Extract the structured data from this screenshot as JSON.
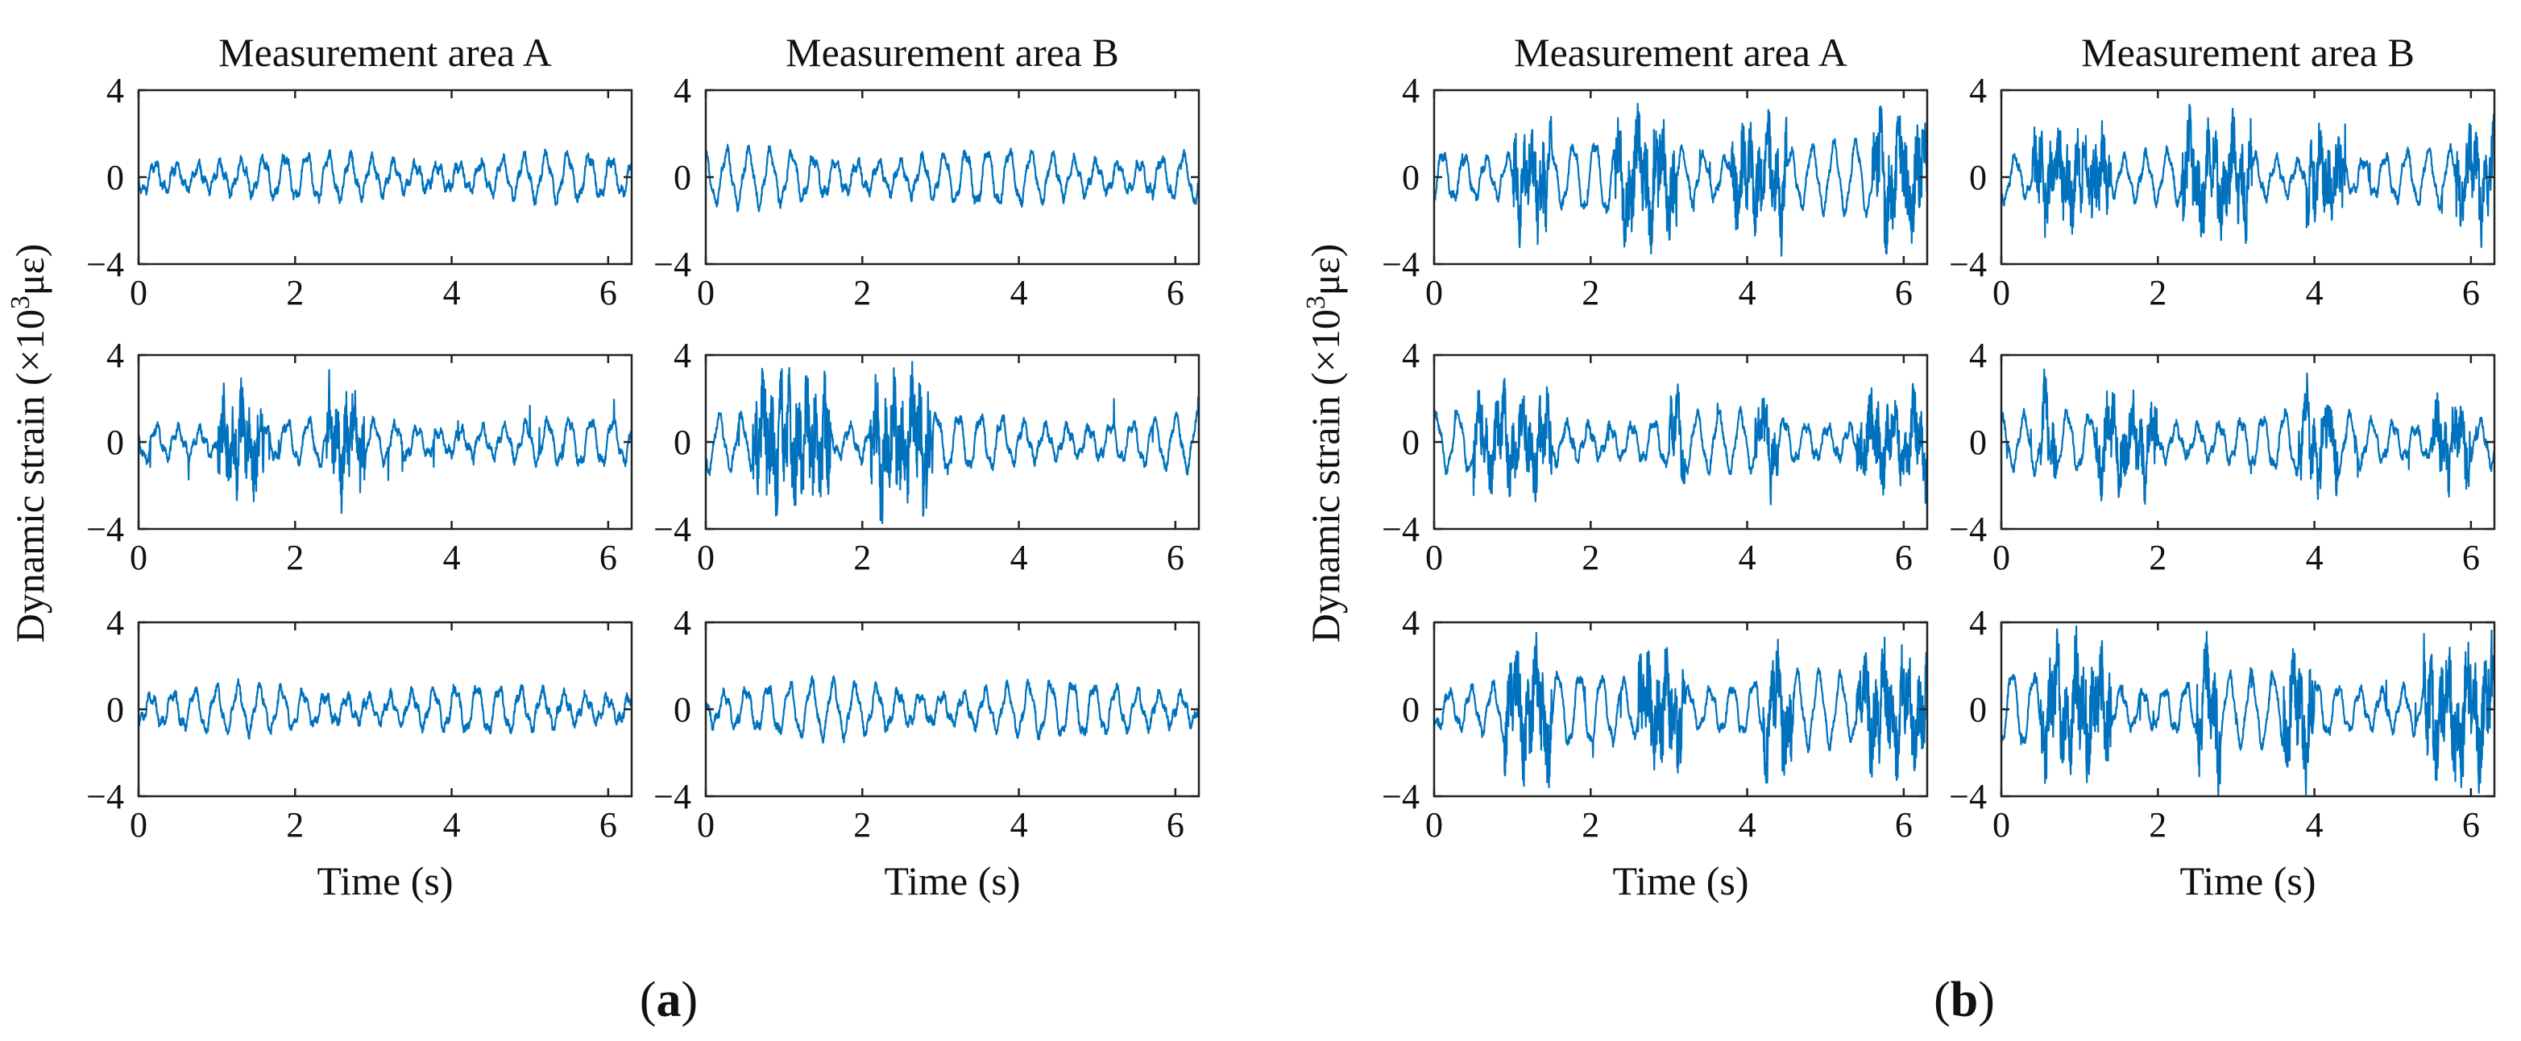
{
  "chart_data": [
    {
      "type": "line",
      "panel_label": "(a)",
      "column_titles": [
        "Measurement area A",
        "Measurement area B"
      ],
      "ylabel_prefix": "Dynamic strain (×10",
      "ylabel_sup": "3",
      "ylabel_suffix": "με)",
      "xlabel": "Time (s)",
      "xlim": [
        0,
        6.3
      ],
      "ylim": [
        -4,
        4
      ],
      "xticks": [
        0,
        2,
        4,
        6
      ],
      "yticks": [
        4,
        0,
        -4
      ],
      "series_color": "#0072BD",
      "rows": [
        [
          {
            "name": "a-A-row1",
            "base_amp": 1.0,
            "burst": 0.25,
            "bursts": [],
            "seed": 11
          },
          {
            "name": "a-B-row1",
            "base_amp": 1.2,
            "burst": 0.25,
            "bursts": [],
            "seed": 12
          }
        ],
        [
          {
            "name": "a-A-row2",
            "base_amp": 1.0,
            "burst": 1.6,
            "bursts": [
              [
                1.0,
                1.6
              ],
              [
                2.4,
                2.9
              ]
            ],
            "seed": 21
          },
          {
            "name": "a-B-row2",
            "base_amp": 1.2,
            "burst": 2.0,
            "bursts": [
              [
                0.6,
                1.6
              ],
              [
                2.1,
                2.9
              ]
            ],
            "seed": 22
          }
        ],
        [
          {
            "name": "a-A-row3",
            "base_amp": 1.0,
            "burst": 0.25,
            "bursts": [],
            "seed": 31
          },
          {
            "name": "a-B-row3",
            "base_amp": 1.2,
            "burst": 0.25,
            "bursts": [],
            "seed": 32
          }
        ]
      ]
    },
    {
      "type": "line",
      "panel_label": "(b)",
      "column_titles": [
        "Measurement area A",
        "Measurement area B"
      ],
      "ylabel_prefix": "Dynamic strain (×10",
      "ylabel_sup": "3",
      "ylabel_suffix": "με)",
      "xlabel": "Time (s)",
      "xlim": [
        0,
        6.3
      ],
      "ylim": [
        -4,
        4
      ],
      "xticks": [
        0,
        2,
        4,
        6
      ],
      "yticks": [
        4,
        0,
        -4
      ],
      "series_color": "#0072BD",
      "rows": [
        [
          {
            "name": "b-A-row1",
            "base_amp": 1.6,
            "burst": 1.6,
            "bursts": [
              [
                1.0,
                1.5
              ],
              [
                2.3,
                3.1
              ],
              [
                3.8,
                4.5
              ],
              [
                5.6,
                6.3
              ]
            ],
            "seed": 41
          },
          {
            "name": "b-B-row1",
            "base_amp": 1.2,
            "burst": 1.4,
            "bursts": [
              [
                0.4,
                1.4
              ],
              [
                2.3,
                3.2
              ],
              [
                3.9,
                4.4
              ],
              [
                5.8,
                6.3
              ]
            ],
            "seed": 42
          }
        ],
        [
          {
            "name": "b-A-row2",
            "base_amp": 1.3,
            "burst": 1.2,
            "bursts": [
              [
                0.5,
                1.5
              ],
              [
                3.0,
                3.2
              ],
              [
                4.1,
                4.4
              ],
              [
                5.4,
                6.3
              ]
            ],
            "seed": 51
          },
          {
            "name": "b-B-row2",
            "base_amp": 1.3,
            "burst": 1.2,
            "bursts": [
              [
                0.5,
                0.7
              ],
              [
                1.2,
                2.0
              ],
              [
                3.8,
                4.3
              ],
              [
                5.5,
                6.0
              ]
            ],
            "seed": 52
          }
        ],
        [
          {
            "name": "b-A-row3",
            "base_amp": 1.6,
            "burst": 1.6,
            "bursts": [
              [
                0.9,
                1.5
              ],
              [
                2.6,
                3.2
              ],
              [
                4.2,
                4.6
              ],
              [
                5.4,
                6.3
              ]
            ],
            "seed": 61
          },
          {
            "name": "b-B-row3",
            "base_amp": 1.6,
            "burst": 1.8,
            "bursts": [
              [
                0.5,
                1.4
              ],
              [
                2.5,
                2.8
              ],
              [
                3.6,
                4.0
              ],
              [
                5.4,
                6.3
              ]
            ],
            "seed": 62
          }
        ]
      ]
    }
  ]
}
